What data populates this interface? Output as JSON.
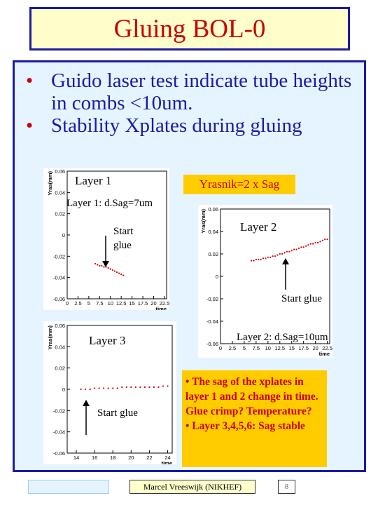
{
  "title": "Gluing BOL-0",
  "bullets": [
    "Guido laser test indicate tube heights in combs <10um.",
    "Stability Xplates during gluing"
  ],
  "colors": {
    "title": "#cc0000",
    "border": "#1a1aa6",
    "bullet_text": "#1a1aa6",
    "note_text": "#cc0000",
    "yellow": "#ffcc00",
    "pale_blue": "#e6f4ff",
    "pale_yellow": "#ffffcc",
    "points": "#cc0000"
  },
  "labels": {
    "layer1": "Layer 1",
    "layer1_sag": "Layer 1: d.Sag=7um",
    "start_glue_1a": "Start",
    "start_glue_1b": "glue",
    "yrasnik": "Yrasnik=2 x Sag",
    "layer2": "Layer 2",
    "start_glue_2": "Start glue",
    "layer2_sag": "Layer 2: d.Sag=10um",
    "layer3": "Layer 3",
    "start_glue_3": "Start glue"
  },
  "note_lines": [
    "• The sag of the xplates in layer 1 and 2 change in time.  Glue crimp? Temperature?",
    "• Layer 3,4,5,6: Sag stable"
  ],
  "footer": {
    "author": "Marcel Vreeswijk (NIKHEF)",
    "page": "8"
  },
  "chart_data": [
    {
      "type": "scatter",
      "ylabel": "Yras(mm)",
      "xlabel": "time",
      "xticks": [
        "0",
        "2.5",
        "5",
        "7.5",
        "10",
        "12.5",
        "15",
        "17.5",
        "20",
        "22.5"
      ],
      "yticks": [
        "0.06",
        "0.04",
        "0.02",
        "0",
        "-0.02",
        "-0.04",
        "-0.06"
      ],
      "xlim": [
        0,
        23
      ],
      "ylim": [
        -0.06,
        0.06
      ],
      "series": [
        {
          "x": [
            6.5,
            7,
            7.5,
            8,
            8.5,
            9,
            9.5,
            10,
            10.5,
            11,
            11.5,
            12,
            12.5,
            13
          ],
          "y": [
            -0.027,
            -0.028,
            -0.029,
            -0.029,
            -0.03,
            -0.03,
            -0.031,
            -0.032,
            -0.033,
            -0.034,
            -0.035,
            -0.036,
            -0.037,
            -0.038
          ]
        }
      ]
    },
    {
      "type": "scatter",
      "ylabel": "Yras(mm)",
      "xlabel": "time",
      "xticks": [
        "0",
        "2.5",
        "5",
        "7.5",
        "10",
        "12.5",
        "15",
        "17.5",
        "20",
        "22.5"
      ],
      "yticks": [
        "0.06",
        "0.04",
        "0.02",
        "0",
        "-0.02",
        "-0.04",
        "-0.06"
      ],
      "xlim": [
        0,
        23
      ],
      "ylim": [
        -0.06,
        0.06
      ],
      "series": [
        {
          "x": [
            6.5,
            7,
            7.5,
            8,
            8.5,
            9,
            9.5,
            10,
            10.5,
            11,
            11.5,
            12,
            12.5,
            13,
            13.5,
            14,
            14.5,
            15,
            15.5,
            16,
            16.5,
            17,
            17.5,
            18,
            18.5,
            19,
            19.5,
            20,
            20.5,
            21,
            21.5,
            22,
            22.5
          ],
          "y": [
            0.014,
            0.014,
            0.015,
            0.015,
            0.015,
            0.016,
            0.016,
            0.017,
            0.017,
            0.018,
            0.018,
            0.019,
            0.02,
            0.02,
            0.021,
            0.022,
            0.022,
            0.023,
            0.024,
            0.024,
            0.025,
            0.026,
            0.026,
            0.027,
            0.028,
            0.029,
            0.029,
            0.03,
            0.03,
            0.031,
            0.032,
            0.033,
            0.033
          ]
        }
      ]
    },
    {
      "type": "scatter",
      "ylabel": "Yras(mm)",
      "xlabel": "time",
      "xticks": [
        "14",
        "16",
        "18",
        "20",
        "22",
        "24"
      ],
      "yticks": [
        "0.06",
        "0.04",
        "0.02",
        "0",
        "-0.02",
        "-0.04",
        "-0.06"
      ],
      "xlim": [
        13,
        24.5
      ],
      "ylim": [
        -0.06,
        0.06
      ],
      "series": [
        {
          "x": [
            14.5,
            15,
            15.5,
            16,
            16.5,
            17,
            17.5,
            18,
            18.5,
            19,
            19.5,
            20,
            20.5,
            21,
            21.5,
            22,
            22.5,
            23,
            23.5,
            24
          ],
          "y": [
            0.0,
            0.0,
            0.0,
            0.001,
            0.001,
            0.001,
            0.001,
            0.001,
            0.001,
            0.002,
            0.002,
            0.002,
            0.002,
            0.002,
            0.002,
            0.002,
            0.002,
            0.002,
            0.003,
            0.003
          ]
        }
      ]
    }
  ]
}
